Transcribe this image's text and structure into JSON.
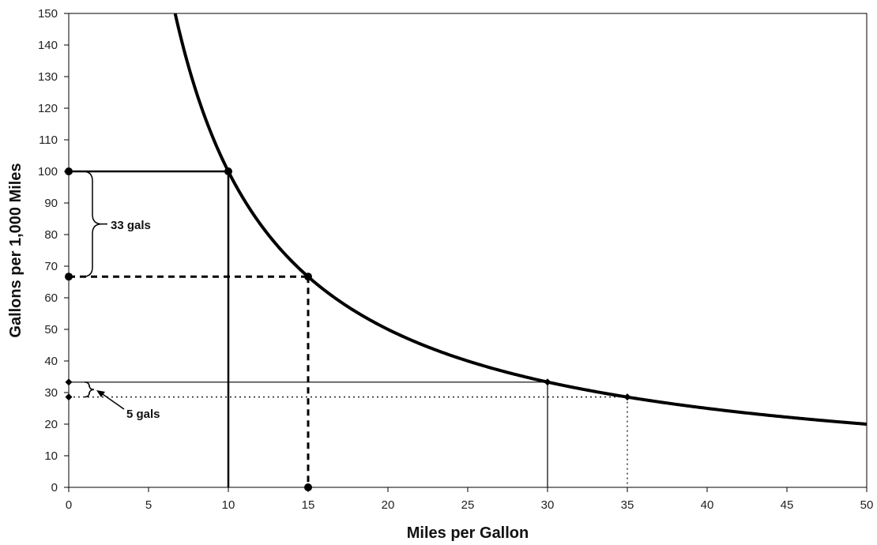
{
  "chart_data": {
    "type": "line",
    "title": "",
    "xlabel": "Miles per Gallon",
    "ylabel": "Gallons per 1,000 Miles",
    "xlim": [
      0,
      50
    ],
    "ylim": [
      0,
      150
    ],
    "x_ticks": [
      0,
      5,
      10,
      15,
      20,
      25,
      30,
      35,
      40,
      45,
      50
    ],
    "y_ticks": [
      0,
      10,
      20,
      30,
      40,
      50,
      60,
      70,
      80,
      90,
      100,
      110,
      120,
      130,
      140,
      150
    ],
    "grid": false,
    "legend": "none",
    "curve": {
      "formula": "gallons = 1000 / mpg",
      "x_range": [
        6.67,
        50
      ],
      "color": "#000000"
    },
    "markers": [
      {
        "x": 0,
        "y": 100,
        "shape": "circle"
      },
      {
        "x": 10,
        "y": 100,
        "shape": "circle"
      },
      {
        "x": 0,
        "y": 66.7,
        "shape": "circle"
      },
      {
        "x": 15,
        "y": 66.7,
        "shape": "circle"
      },
      {
        "x": 15,
        "y": 0,
        "shape": "circle"
      },
      {
        "x": 0,
        "y": 33.3,
        "shape": "diamond"
      },
      {
        "x": 30,
        "y": 33.3,
        "shape": "diamond"
      },
      {
        "x": 0,
        "y": 28.6,
        "shape": "diamond"
      },
      {
        "x": 35,
        "y": 28.6,
        "shape": "diamond"
      }
    ],
    "reference_lines": [
      {
        "x1": 0,
        "y1": 100,
        "x2": 10,
        "y2": 100,
        "style": "solid-thick"
      },
      {
        "x1": 10,
        "y1": 100,
        "x2": 10,
        "y2": 0,
        "style": "solid-thick"
      },
      {
        "x1": 0,
        "y1": 66.7,
        "x2": 15,
        "y2": 66.7,
        "style": "dashed-thick"
      },
      {
        "x1": 15,
        "y1": 66.7,
        "x2": 15,
        "y2": 0,
        "style": "dashed-thick"
      },
      {
        "x1": 0,
        "y1": 33.3,
        "x2": 30,
        "y2": 33.3,
        "style": "solid-thin"
      },
      {
        "x1": 30,
        "y1": 33.3,
        "x2": 30,
        "y2": 0,
        "style": "solid-thin"
      },
      {
        "x1": 0,
        "y1": 28.6,
        "x2": 35,
        "y2": 28.6,
        "style": "dotted-thin"
      },
      {
        "x1": 35,
        "y1": 28.6,
        "x2": 35,
        "y2": 0,
        "style": "dotted-thin"
      }
    ],
    "annotations": [
      {
        "text": "33 gals",
        "brace_y": [
          66.7,
          100
        ]
      },
      {
        "text": "5 gals",
        "brace_y": [
          28.6,
          33.3
        ]
      }
    ]
  }
}
